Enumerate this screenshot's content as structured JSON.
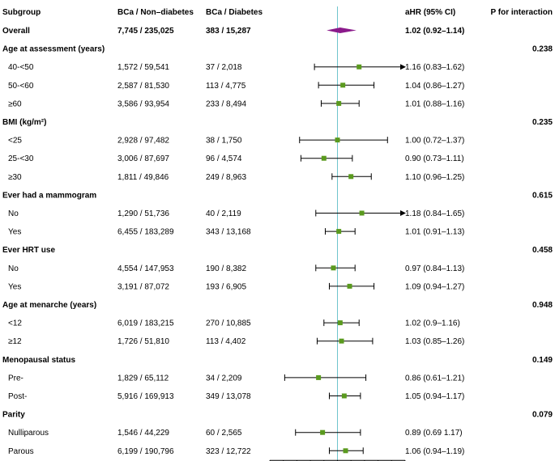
{
  "headers": {
    "subgroup": "Subgroup",
    "col1": "BCa / Non–diabetes",
    "col2": "BCa / Diabetes",
    "ci": "aHR (95% CI)",
    "pint": "P for interaction"
  },
  "colors": {
    "marker": "#5a9a1e",
    "diamond": "#8b1a8b",
    "reference_line": "#6fc4cc"
  },
  "chart_data": {
    "type": "forest",
    "reference_value": 1,
    "xlim": [
      0.5,
      1.5
    ],
    "xticks": [
      "0.5",
      "0.6",
      "0.7",
      "0.8",
      "0.9",
      "1",
      "1.1",
      "1.2",
      "1.3",
      "1.4",
      "1.5"
    ],
    "rows": [
      {
        "kind": "overall",
        "label": "Overall",
        "col1": "7,745 / 235,025",
        "col2": "383 / 15,287",
        "est": 1.02,
        "lo": 0.92,
        "hi": 1.14,
        "ci_text": "1.02 (0.92–1.14)",
        "pint": ""
      },
      {
        "kind": "header",
        "label": "Age at assessment (years)",
        "pint": "0.238"
      },
      {
        "kind": "row",
        "label": "40-<50",
        "col1": "1,572 / 59,541",
        "col2": "37 / 2,018",
        "est": 1.16,
        "lo": 0.83,
        "hi": 1.62,
        "ci_text": "1.16 (0.83–1.62)"
      },
      {
        "kind": "row",
        "label": "50-<60",
        "col1": "2,587 / 81,530",
        "col2": "113 / 4,775",
        "est": 1.04,
        "lo": 0.86,
        "hi": 1.27,
        "ci_text": "1.04 (0.86–1.27)"
      },
      {
        "kind": "row",
        "label": "≥60",
        "col1": "3,586 / 93,954",
        "col2": "233 / 8,494",
        "est": 1.01,
        "lo": 0.88,
        "hi": 1.16,
        "ci_text": "1.01 (0.88–1.16)"
      },
      {
        "kind": "header",
        "label": "BMI (kg/m²)",
        "pint": "0.235"
      },
      {
        "kind": "row",
        "label": "<25",
        "col1": "2,928 / 97,482",
        "col2": "38 / 1,750",
        "est": 1.0,
        "lo": 0.72,
        "hi": 1.37,
        "ci_text": "1.00 (0.72–1.37)"
      },
      {
        "kind": "row",
        "label": "25-<30",
        "col1": "3,006 / 87,697",
        "col2": "96 / 4,574",
        "est": 0.9,
        "lo": 0.73,
        "hi": 1.11,
        "ci_text": "0.90 (0.73–1.11)"
      },
      {
        "kind": "row",
        "label": "≥30",
        "col1": "1,811 / 49,846",
        "col2": "249 / 8,963",
        "est": 1.1,
        "lo": 0.96,
        "hi": 1.25,
        "ci_text": "1.10 (0.96–1.25)"
      },
      {
        "kind": "header",
        "label": "Ever had a mammogram",
        "pint": "0.615"
      },
      {
        "kind": "row",
        "label": "No",
        "col1": "1,290 / 51,736",
        "col2": "40 / 2,119",
        "est": 1.18,
        "lo": 0.84,
        "hi": 1.65,
        "ci_text": "1.18 (0.84–1.65)"
      },
      {
        "kind": "row",
        "label": "Yes",
        "col1": "6,455 / 183,289",
        "col2": "343 / 13,168",
        "est": 1.01,
        "lo": 0.91,
        "hi": 1.13,
        "ci_text": "1.01 (0.91–1.13)"
      },
      {
        "kind": "header",
        "label": "Ever HRT use",
        "pint": "0.458"
      },
      {
        "kind": "row",
        "label": "No",
        "col1": "4,554 / 147,953",
        "col2": "190 / 8,382",
        "est": 0.97,
        "lo": 0.84,
        "hi": 1.13,
        "ci_text": "0.97 (0.84–1.13)"
      },
      {
        "kind": "row",
        "label": "Yes",
        "col1": "3,191 / 87,072",
        "col2": "193 / 6,905",
        "est": 1.09,
        "lo": 0.94,
        "hi": 1.27,
        "ci_text": "1.09 (0.94–1.27)"
      },
      {
        "kind": "header",
        "label": "Age at menarche (years)",
        "pint": "0.948"
      },
      {
        "kind": "row",
        "label": "<12",
        "col1": "6,019 / 183,215",
        "col2": "270 / 10,885",
        "est": 1.02,
        "lo": 0.9,
        "hi": 1.16,
        "ci_text": "1.02 (0.9–1.16)"
      },
      {
        "kind": "row",
        "label": "≥12",
        "col1": "1,726 / 51,810",
        "col2": "113 / 4,402",
        "est": 1.03,
        "lo": 0.85,
        "hi": 1.26,
        "ci_text": "1.03 (0.85–1.26)"
      },
      {
        "kind": "header",
        "label": "Menopausal status",
        "pint": "0.149"
      },
      {
        "kind": "row",
        "label": "Pre-",
        "col1": "1,829 / 65,112",
        "col2": "34 / 2,209",
        "est": 0.86,
        "lo": 0.61,
        "hi": 1.21,
        "ci_text": "0.86 (0.61–1.21)"
      },
      {
        "kind": "row",
        "label": "Post-",
        "col1": "5,916 / 169,913",
        "col2": "349 / 13,078",
        "est": 1.05,
        "lo": 0.94,
        "hi": 1.17,
        "ci_text": "1.05 (0.94–1.17)"
      },
      {
        "kind": "header",
        "label": "Parity",
        "pint": "0.079"
      },
      {
        "kind": "row",
        "label": "Nulliparous",
        "col1": "1,546 / 44,229",
        "col2": "60 / 2,565",
        "est": 0.89,
        "lo": 0.69,
        "hi": 1.17,
        "ci_text": "0.89 (0.69  1.17)"
      },
      {
        "kind": "row",
        "label": "Parous",
        "col1": "6,199 / 190,796",
        "col2": "323 / 12,722",
        "est": 1.06,
        "lo": 0.94,
        "hi": 1.19,
        "ci_text": "1.06 (0.94–1.19)"
      }
    ]
  }
}
